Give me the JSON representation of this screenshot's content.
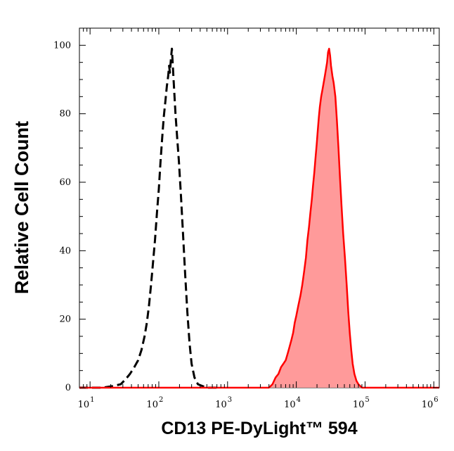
{
  "chart_data": {
    "type": "line",
    "title": "",
    "xlabel": "CD13 PE-DyLight™ 594",
    "ylabel": "Relative Cell Count",
    "x_scale": "log",
    "xlim": [
      7,
      1200000
    ],
    "ylim": [
      0,
      105
    ],
    "x_ticks": [
      {
        "value": 10,
        "base": "10",
        "exp": "1"
      },
      {
        "value": 100,
        "base": "10",
        "exp": "2"
      },
      {
        "value": 1000,
        "base": "10",
        "exp": "3"
      },
      {
        "value": 10000,
        "base": "10",
        "exp": "4"
      },
      {
        "value": 100000,
        "base": "10",
        "exp": "5"
      },
      {
        "value": 1000000,
        "base": "10",
        "exp": "6"
      }
    ],
    "y_ticks": [
      0,
      20,
      40,
      60,
      80,
      100
    ],
    "grid": false,
    "legend": "none",
    "series": [
      {
        "style": "dashed",
        "color": "#000000",
        "fill": false,
        "points": [
          [
            7,
            0
          ],
          [
            15,
            0
          ],
          [
            22,
            0.5
          ],
          [
            28,
            1
          ],
          [
            33,
            2.5
          ],
          [
            38,
            4
          ],
          [
            44,
            6
          ],
          [
            50,
            8
          ],
          [
            56,
            11
          ],
          [
            62,
            15
          ],
          [
            67,
            19
          ],
          [
            72,
            24
          ],
          [
            77,
            30
          ],
          [
            82,
            36
          ],
          [
            88,
            43
          ],
          [
            94,
            51
          ],
          [
            100,
            58
          ],
          [
            106,
            66
          ],
          [
            112,
            73
          ],
          [
            118,
            79
          ],
          [
            125,
            84
          ],
          [
            131,
            88
          ],
          [
            137,
            91
          ],
          [
            141,
            94
          ],
          [
            145,
            92
          ],
          [
            150,
            96
          ],
          [
            155,
            99
          ],
          [
            160,
            94
          ],
          [
            167,
            87
          ],
          [
            175,
            80
          ],
          [
            185,
            73
          ],
          [
            196,
            66
          ],
          [
            210,
            56
          ],
          [
            225,
            45
          ],
          [
            242,
            33
          ],
          [
            260,
            22
          ],
          [
            280,
            13
          ],
          [
            300,
            7
          ],
          [
            330,
            3
          ],
          [
            370,
            1
          ],
          [
            430,
            0.5
          ],
          [
            500,
            0
          ],
          [
            600,
            0
          ],
          [
            700,
            0
          ]
        ]
      },
      {
        "style": "solid",
        "color": "#ff0000",
        "fill": true,
        "fill_color": "#ff9a9a",
        "points": [
          [
            7,
            0
          ],
          [
            1000,
            0
          ],
          [
            3000,
            0
          ],
          [
            4000,
            0
          ],
          [
            4500,
            1
          ],
          [
            5000,
            3
          ],
          [
            5500,
            4
          ],
          [
            6000,
            6
          ],
          [
            6500,
            7
          ],
          [
            7000,
            8
          ],
          [
            7500,
            10
          ],
          [
            8000,
            12
          ],
          [
            8500,
            14
          ],
          [
            9000,
            16
          ],
          [
            9500,
            19
          ],
          [
            10000,
            21
          ],
          [
            10700,
            24
          ],
          [
            11500,
            27
          ],
          [
            12200,
            30
          ],
          [
            13000,
            34
          ],
          [
            13800,
            38
          ],
          [
            14500,
            43
          ],
          [
            15300,
            47
          ],
          [
            16000,
            51
          ],
          [
            16800,
            55
          ],
          [
            17500,
            59
          ],
          [
            18300,
            63
          ],
          [
            19000,
            67
          ],
          [
            19800,
            71
          ],
          [
            20500,
            75
          ],
          [
            21300,
            79
          ],
          [
            22000,
            82
          ],
          [
            23000,
            85
          ],
          [
            24000,
            87
          ],
          [
            25000,
            89
          ],
          [
            26000,
            91
          ],
          [
            27000,
            93
          ],
          [
            28000,
            95
          ],
          [
            29000,
            98
          ],
          [
            30000,
            99
          ],
          [
            31000,
            97
          ],
          [
            32000,
            94
          ],
          [
            33500,
            91
          ],
          [
            35000,
            89
          ],
          [
            37000,
            85
          ],
          [
            39000,
            78
          ],
          [
            41000,
            70
          ],
          [
            43000,
            62
          ],
          [
            45500,
            53
          ],
          [
            48000,
            45
          ],
          [
            51000,
            38
          ],
          [
            54000,
            30
          ],
          [
            57000,
            22
          ],
          [
            60000,
            16
          ],
          [
            63000,
            11
          ],
          [
            66000,
            7
          ],
          [
            70000,
            4
          ],
          [
            75000,
            2
          ],
          [
            80000,
            1
          ],
          [
            90000,
            0
          ],
          [
            100000,
            0
          ],
          [
            1200000,
            0
          ]
        ]
      }
    ]
  }
}
